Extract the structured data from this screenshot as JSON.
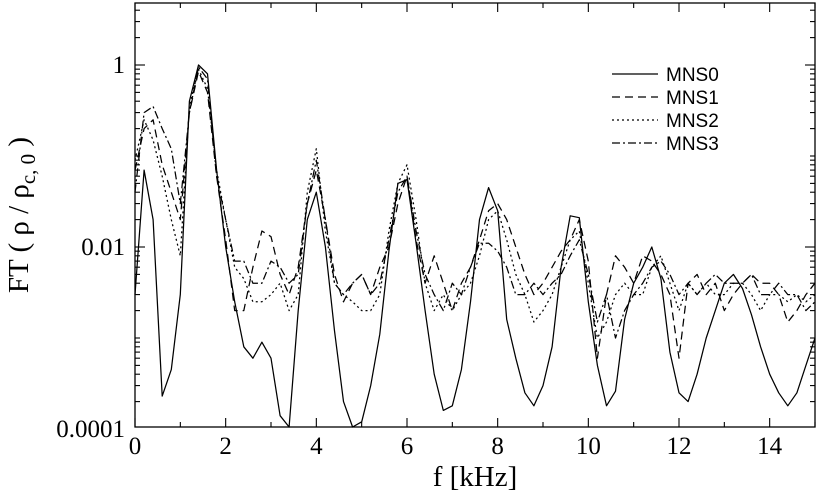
{
  "chart_data": {
    "type": "line",
    "xlabel": "f [kHz]",
    "ylabel": "FT ( ρ / ρ",
    "ylabel_sub": "c, 0",
    "ylabel_close": " )",
    "xlim": [
      0,
      15
    ],
    "ylim": [
      0.0001,
      5
    ],
    "yscale": "log",
    "grid": false,
    "legend_position": "top-right",
    "x_ticks": [
      0,
      2,
      4,
      6,
      8,
      10,
      12,
      14
    ],
    "x_tick_labels": [
      "0",
      "2",
      "4",
      "6",
      "8",
      "10",
      "12",
      "14"
    ],
    "y_ticks": [
      0.0001,
      0.01,
      1
    ],
    "y_tick_labels": [
      "0.0001",
      "0.01",
      "1"
    ],
    "series": [
      {
        "name": "MNS0",
        "dash": "solid",
        "points": [
          [
            0,
            0.003
          ],
          [
            0.2,
            0.07
          ],
          [
            0.4,
            0.02
          ],
          [
            0.6,
            0.00023
          ],
          [
            0.8,
            0.00045
          ],
          [
            1.0,
            0.003
          ],
          [
            1.2,
            0.4
          ],
          [
            1.4,
            1.0
          ],
          [
            1.6,
            0.8
          ],
          [
            1.8,
            0.07
          ],
          [
            2.0,
            0.01
          ],
          [
            2.2,
            0.0025
          ],
          [
            2.4,
            0.0008
          ],
          [
            2.6,
            0.0006
          ],
          [
            2.8,
            0.0009
          ],
          [
            3.0,
            0.0006
          ],
          [
            3.2,
            0.00014
          ],
          [
            3.4,
            0.0001
          ],
          [
            3.6,
            0.002
          ],
          [
            3.8,
            0.02
          ],
          [
            4.0,
            0.04
          ],
          [
            4.2,
            0.01
          ],
          [
            4.4,
            0.0012
          ],
          [
            4.6,
            0.0002
          ],
          [
            4.8,
            8.5e-05
          ],
          [
            5.0,
            0.00012
          ],
          [
            5.2,
            0.0003
          ],
          [
            5.4,
            0.0011
          ],
          [
            5.6,
            0.009
          ],
          [
            5.8,
            0.05
          ],
          [
            6.0,
            0.055
          ],
          [
            6.2,
            0.011
          ],
          [
            6.4,
            0.002
          ],
          [
            6.6,
            0.0004
          ],
          [
            6.8,
            0.00016
          ],
          [
            7.0,
            0.00018
          ],
          [
            7.2,
            0.00045
          ],
          [
            7.4,
            0.0025
          ],
          [
            7.6,
            0.02
          ],
          [
            7.8,
            0.045
          ],
          [
            8.0,
            0.025
          ],
          [
            8.2,
            0.0016
          ],
          [
            8.4,
            0.0006
          ],
          [
            8.6,
            0.00025
          ],
          [
            8.8,
            0.00018
          ],
          [
            9.0,
            0.0003
          ],
          [
            9.2,
            0.0008
          ],
          [
            9.4,
            0.006
          ],
          [
            9.6,
            0.022
          ],
          [
            9.8,
            0.021
          ],
          [
            10.0,
            0.0025
          ],
          [
            10.2,
            0.0005
          ],
          [
            10.4,
            0.00018
          ],
          [
            10.6,
            0.00026
          ],
          [
            10.8,
            0.0016
          ],
          [
            11.0,
            0.004
          ],
          [
            11.2,
            0.006
          ],
          [
            11.4,
            0.01
          ],
          [
            11.6,
            0.0045
          ],
          [
            11.8,
            0.0007
          ],
          [
            12.0,
            0.00025
          ],
          [
            12.2,
            0.0002
          ],
          [
            12.4,
            0.0004
          ],
          [
            12.6,
            0.001
          ],
          [
            12.8,
            0.002
          ],
          [
            13.0,
            0.004
          ],
          [
            13.2,
            0.005
          ],
          [
            13.4,
            0.0035
          ],
          [
            13.6,
            0.0018
          ],
          [
            13.8,
            0.0008
          ],
          [
            14.0,
            0.0004
          ],
          [
            14.2,
            0.00025
          ],
          [
            14.4,
            0.00018
          ],
          [
            14.6,
            0.00025
          ],
          [
            14.8,
            0.0005
          ],
          [
            15.0,
            0.001
          ]
        ]
      },
      {
        "name": "MNS1",
        "dash": "8,5",
        "points": [
          [
            0,
            0.07
          ],
          [
            0.2,
            0.2
          ],
          [
            0.4,
            0.25
          ],
          [
            0.6,
            0.08
          ],
          [
            0.8,
            0.04
          ],
          [
            1.0,
            0.02
          ],
          [
            1.2,
            0.3
          ],
          [
            1.4,
            0.85
          ],
          [
            1.6,
            0.5
          ],
          [
            1.8,
            0.06
          ],
          [
            2.0,
            0.012
          ],
          [
            2.2,
            0.002
          ],
          [
            2.4,
            0.002
          ],
          [
            2.6,
            0.006
          ],
          [
            2.8,
            0.015
          ],
          [
            3.0,
            0.013
          ],
          [
            3.2,
            0.005
          ],
          [
            3.4,
            0.003
          ],
          [
            3.6,
            0.006
          ],
          [
            3.8,
            0.03
          ],
          [
            4.0,
            0.07
          ],
          [
            4.2,
            0.02
          ],
          [
            4.4,
            0.005
          ],
          [
            4.6,
            0.0025
          ],
          [
            4.8,
            0.004
          ],
          [
            5.0,
            0.005
          ],
          [
            5.2,
            0.003
          ],
          [
            5.4,
            0.006
          ],
          [
            5.6,
            0.01
          ],
          [
            5.8,
            0.03
          ],
          [
            6.0,
            0.06
          ],
          [
            6.2,
            0.012
          ],
          [
            6.4,
            0.004
          ],
          [
            6.6,
            0.008
          ],
          [
            6.8,
            0.004
          ],
          [
            7.0,
            0.002
          ],
          [
            7.2,
            0.004
          ],
          [
            7.4,
            0.006
          ],
          [
            7.6,
            0.012
          ],
          [
            7.8,
            0.025
          ],
          [
            8.0,
            0.03
          ],
          [
            8.2,
            0.02
          ],
          [
            8.4,
            0.01
          ],
          [
            8.6,
            0.005
          ],
          [
            8.8,
            0.003
          ],
          [
            9.0,
            0.004
          ],
          [
            9.2,
            0.006
          ],
          [
            9.4,
            0.009
          ],
          [
            9.6,
            0.012
          ],
          [
            9.8,
            0.02
          ],
          [
            10.0,
            0.007
          ],
          [
            10.2,
            0.0006
          ],
          [
            10.4,
            0.003
          ],
          [
            10.6,
            0.008
          ],
          [
            10.8,
            0.006
          ],
          [
            11.0,
            0.004
          ],
          [
            11.2,
            0.008
          ],
          [
            11.4,
            0.007
          ],
          [
            11.6,
            0.005
          ],
          [
            11.8,
            0.003
          ],
          [
            12.0,
            0.0006
          ],
          [
            12.2,
            0.004
          ],
          [
            12.4,
            0.005
          ],
          [
            12.6,
            0.003
          ],
          [
            12.8,
            0.004
          ],
          [
            13.0,
            0.002
          ],
          [
            13.2,
            0.003
          ],
          [
            13.4,
            0.004
          ],
          [
            13.6,
            0.005
          ],
          [
            13.8,
            0.004
          ],
          [
            14.0,
            0.004
          ],
          [
            14.2,
            0.003
          ],
          [
            14.4,
            0.0015
          ],
          [
            14.6,
            0.002
          ],
          [
            14.8,
            0.003
          ],
          [
            15.0,
            0.004
          ]
        ]
      },
      {
        "name": "MNS2",
        "dash": "2,3",
        "points": [
          [
            0,
            0.09
          ],
          [
            0.2,
            0.25
          ],
          [
            0.4,
            0.15
          ],
          [
            0.6,
            0.06
          ],
          [
            0.8,
            0.02
          ],
          [
            1.0,
            0.008
          ],
          [
            1.2,
            0.35
          ],
          [
            1.4,
            0.9
          ],
          [
            1.6,
            0.55
          ],
          [
            1.8,
            0.07
          ],
          [
            2.0,
            0.02
          ],
          [
            2.2,
            0.006
          ],
          [
            2.4,
            0.0045
          ],
          [
            2.6,
            0.0025
          ],
          [
            2.8,
            0.0025
          ],
          [
            3.0,
            0.003
          ],
          [
            3.2,
            0.004
          ],
          [
            3.4,
            0.002
          ],
          [
            3.6,
            0.003
          ],
          [
            3.8,
            0.04
          ],
          [
            4.0,
            0.12
          ],
          [
            4.2,
            0.015
          ],
          [
            4.4,
            0.004
          ],
          [
            4.6,
            0.003
          ],
          [
            4.8,
            0.0025
          ],
          [
            5.0,
            0.002
          ],
          [
            5.2,
            0.002
          ],
          [
            5.4,
            0.003
          ],
          [
            5.6,
            0.015
          ],
          [
            5.8,
            0.05
          ],
          [
            6.0,
            0.08
          ],
          [
            6.2,
            0.02
          ],
          [
            6.4,
            0.004
          ],
          [
            6.6,
            0.002
          ],
          [
            6.8,
            0.003
          ],
          [
            7.0,
            0.002
          ],
          [
            7.2,
            0.003
          ],
          [
            7.4,
            0.004
          ],
          [
            7.6,
            0.008
          ],
          [
            7.8,
            0.02
          ],
          [
            8.0,
            0.025
          ],
          [
            8.2,
            0.012
          ],
          [
            8.4,
            0.005
          ],
          [
            8.6,
            0.003
          ],
          [
            8.8,
            0.0015
          ],
          [
            9.0,
            0.002
          ],
          [
            9.2,
            0.003
          ],
          [
            9.4,
            0.006
          ],
          [
            9.6,
            0.012
          ],
          [
            9.8,
            0.015
          ],
          [
            10.0,
            0.004
          ],
          [
            10.2,
            0.001
          ],
          [
            10.4,
            0.0015
          ],
          [
            10.6,
            0.003
          ],
          [
            10.8,
            0.004
          ],
          [
            11.0,
            0.003
          ],
          [
            11.2,
            0.003
          ],
          [
            11.4,
            0.006
          ],
          [
            11.6,
            0.008
          ],
          [
            11.8,
            0.004
          ],
          [
            12.0,
            0.002
          ],
          [
            12.2,
            0.004
          ],
          [
            12.4,
            0.003
          ],
          [
            12.6,
            0.004
          ],
          [
            12.8,
            0.003
          ],
          [
            13.0,
            0.003
          ],
          [
            13.2,
            0.004
          ],
          [
            13.4,
            0.004
          ],
          [
            13.6,
            0.003
          ],
          [
            13.8,
            0.002
          ],
          [
            14.0,
            0.003
          ],
          [
            14.2,
            0.003
          ],
          [
            14.4,
            0.0025
          ],
          [
            14.6,
            0.003
          ],
          [
            14.8,
            0.0025
          ],
          [
            15.0,
            0.003
          ]
        ]
      },
      {
        "name": "MNS3",
        "dash": "8,3,2,3",
        "points": [
          [
            0,
            0.04
          ],
          [
            0.2,
            0.3
          ],
          [
            0.4,
            0.35
          ],
          [
            0.6,
            0.2
          ],
          [
            0.8,
            0.12
          ],
          [
            1.0,
            0.03
          ],
          [
            1.2,
            0.3
          ],
          [
            1.4,
            0.95
          ],
          [
            1.6,
            0.7
          ],
          [
            1.8,
            0.06
          ],
          [
            2.0,
            0.02
          ],
          [
            2.2,
            0.007
          ],
          [
            2.4,
            0.007
          ],
          [
            2.6,
            0.004
          ],
          [
            2.8,
            0.004
          ],
          [
            3.0,
            0.007
          ],
          [
            3.2,
            0.006
          ],
          [
            3.4,
            0.004
          ],
          [
            3.6,
            0.005
          ],
          [
            3.8,
            0.03
          ],
          [
            4.0,
            0.09
          ],
          [
            4.2,
            0.02
          ],
          [
            4.4,
            0.004
          ],
          [
            4.6,
            0.003
          ],
          [
            4.8,
            0.004
          ],
          [
            5.0,
            0.005
          ],
          [
            5.2,
            0.003
          ],
          [
            5.4,
            0.004
          ],
          [
            5.6,
            0.012
          ],
          [
            5.8,
            0.04
          ],
          [
            6.0,
            0.06
          ],
          [
            6.2,
            0.015
          ],
          [
            6.4,
            0.005
          ],
          [
            6.6,
            0.003
          ],
          [
            6.8,
            0.002
          ],
          [
            7.0,
            0.004
          ],
          [
            7.2,
            0.003
          ],
          [
            7.4,
            0.006
          ],
          [
            7.6,
            0.011
          ],
          [
            7.8,
            0.011
          ],
          [
            8.0,
            0.009
          ],
          [
            8.2,
            0.006
          ],
          [
            8.4,
            0.003
          ],
          [
            8.6,
            0.003
          ],
          [
            8.8,
            0.004
          ],
          [
            9.0,
            0.003
          ],
          [
            9.2,
            0.004
          ],
          [
            9.4,
            0.005
          ],
          [
            9.6,
            0.008
          ],
          [
            9.8,
            0.012
          ],
          [
            10.0,
            0.005
          ],
          [
            10.2,
            0.0015
          ],
          [
            10.4,
            0.003
          ],
          [
            10.6,
            0.001
          ],
          [
            10.8,
            0.002
          ],
          [
            11.0,
            0.003
          ],
          [
            11.2,
            0.004
          ],
          [
            11.4,
            0.006
          ],
          [
            11.6,
            0.007
          ],
          [
            11.8,
            0.005
          ],
          [
            12.0,
            0.003
          ],
          [
            12.2,
            0.004
          ],
          [
            12.4,
            0.003
          ],
          [
            12.6,
            0.004
          ],
          [
            12.8,
            0.005
          ],
          [
            13.0,
            0.004
          ],
          [
            13.2,
            0.004
          ],
          [
            13.4,
            0.004
          ],
          [
            13.6,
            0.005
          ],
          [
            13.8,
            0.003
          ],
          [
            14.0,
            0.003
          ],
          [
            14.2,
            0.004
          ],
          [
            14.4,
            0.003
          ],
          [
            14.6,
            0.003
          ],
          [
            14.8,
            0.002
          ],
          [
            15.0,
            0.0025
          ]
        ]
      }
    ]
  }
}
